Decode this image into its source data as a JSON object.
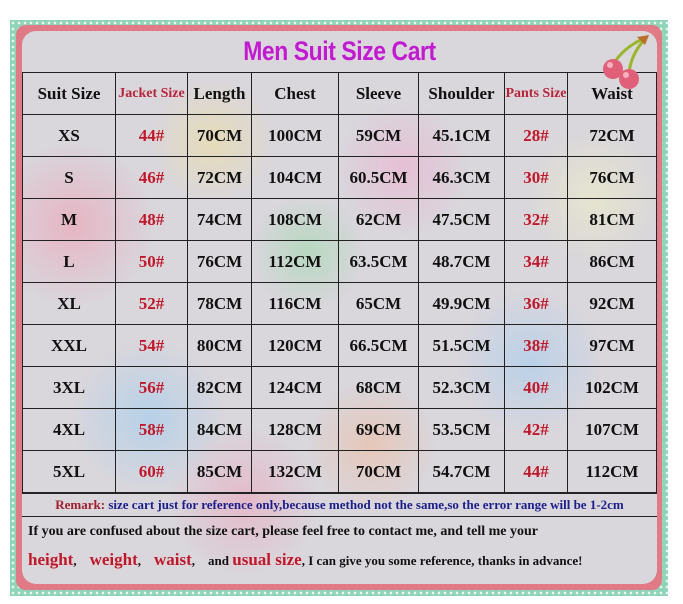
{
  "title": "Men Suit Size Cart",
  "colors": {
    "title": "#c21ad0",
    "accent_red": "#c0182a",
    "frame": "#e07a86",
    "border_dots": "#8fd3b8"
  },
  "decoration_icon": "cherry-icon",
  "table": {
    "headers": [
      "Suit Size",
      "Jacket Size",
      "Length",
      "Chest",
      "Sleeve",
      "Shoulder",
      "Pants Size",
      "Waist"
    ],
    "rows": [
      [
        "XS",
        "44#",
        "70CM",
        "100CM",
        "59CM",
        "45.1CM",
        "28#",
        "72CM"
      ],
      [
        "S",
        "46#",
        "72CM",
        "104CM",
        "60.5CM",
        "46.3CM",
        "30#",
        "76CM"
      ],
      [
        "M",
        "48#",
        "74CM",
        "108CM",
        "62CM",
        "47.5CM",
        "32#",
        "81CM"
      ],
      [
        "L",
        "50#",
        "76CM",
        "112CM",
        "63.5CM",
        "48.7CM",
        "34#",
        "86CM"
      ],
      [
        "XL",
        "52#",
        "78CM",
        "116CM",
        "65CM",
        "49.9CM",
        "36#",
        "92CM"
      ],
      [
        "XXL",
        "54#",
        "80CM",
        "120CM",
        "66.5CM",
        "51.5CM",
        "38#",
        "97CM"
      ],
      [
        "3XL",
        "56#",
        "82CM",
        "124CM",
        "68CM",
        "52.3CM",
        "40#",
        "102CM"
      ],
      [
        "4XL",
        "58#",
        "84CM",
        "128CM",
        "69CM",
        "53.5CM",
        "42#",
        "107CM"
      ],
      [
        "5XL",
        "60#",
        "85CM",
        "132CM",
        "70CM",
        "54.7CM",
        "44#",
        "112CM"
      ]
    ]
  },
  "remark": {
    "label": "Remark:",
    "text": "size cart just for reference only,because method not the same,so the error range will be 1-2cm"
  },
  "note": {
    "line1": "If you are confused about the size cart, please feel free to contact me, and tell me your",
    "height": "height",
    "weight": "weight",
    "waist": "waist",
    "and": "and",
    "usual_size": "usual size",
    "tail": ", I can give you some reference, thanks in advance!"
  }
}
